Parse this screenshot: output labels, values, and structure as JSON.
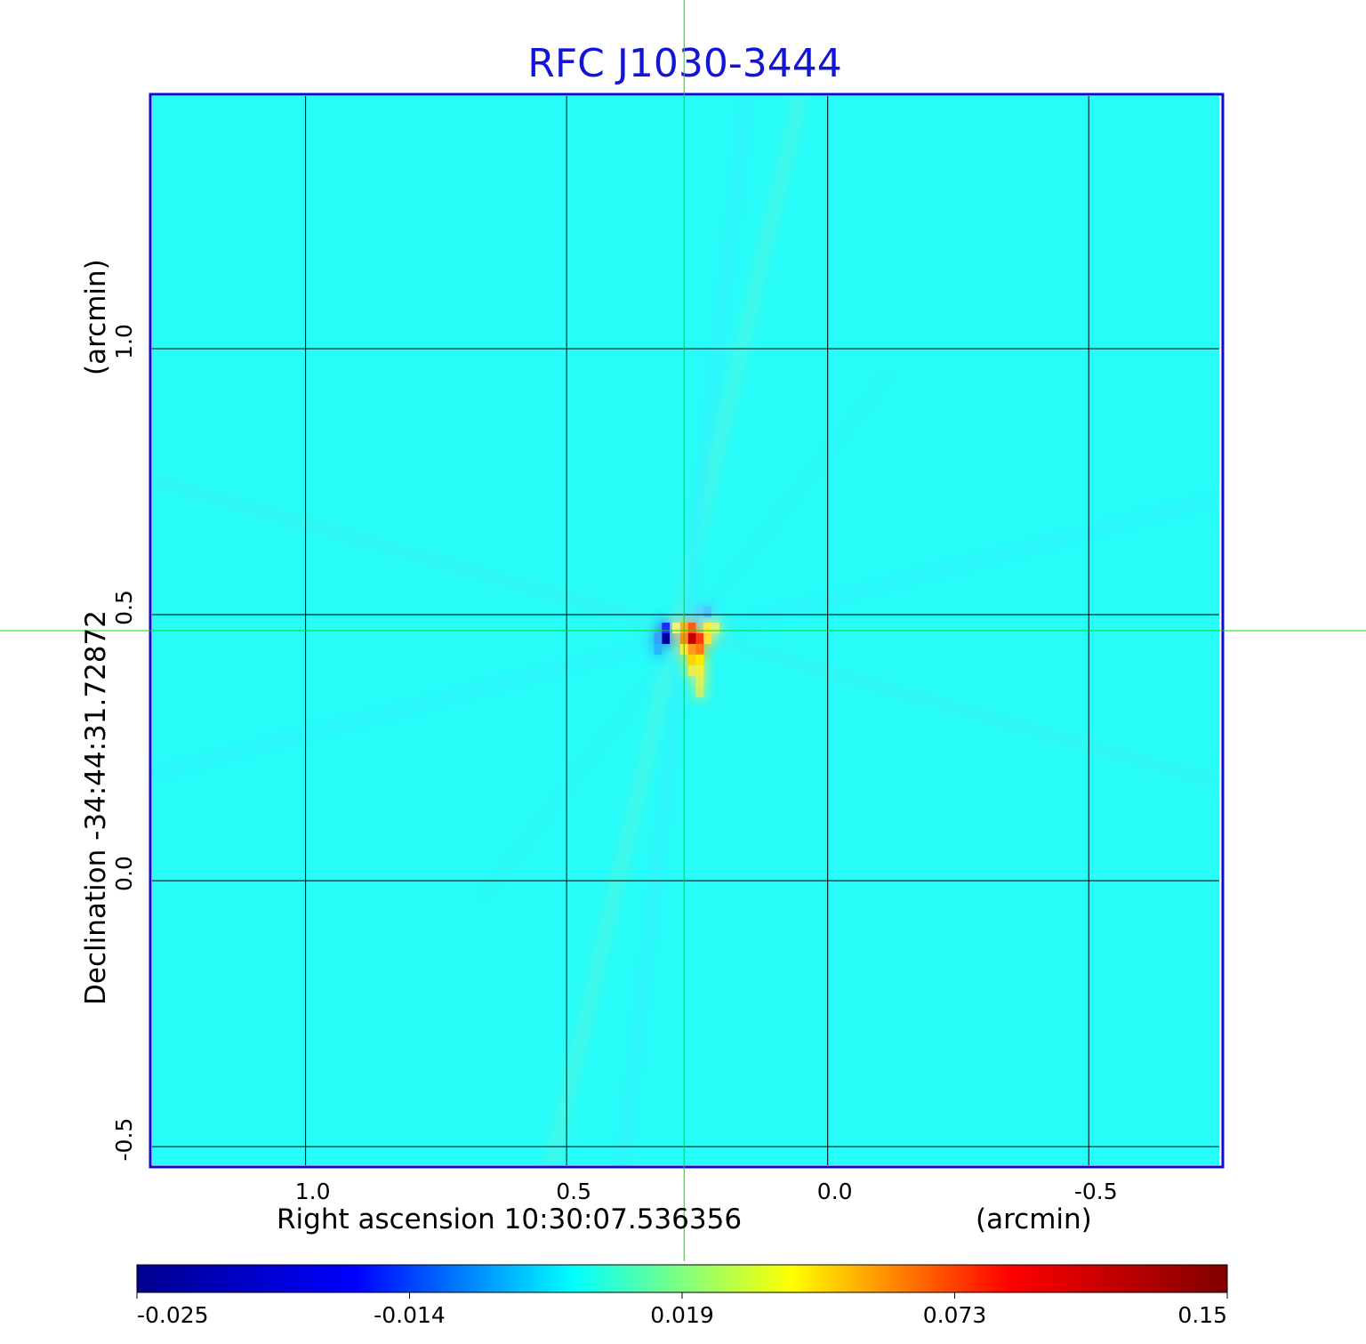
{
  "chart_data": {
    "type": "heatmap",
    "title": "RFC J1030-3444",
    "colors": {
      "title": "#1414d6",
      "frame": "#0a0ad2",
      "grid": "#000000",
      "crosshair": "#00e000",
      "background_map": "#27fcf8"
    },
    "x_axis": {
      "label": "Right ascension  10:30:07.536356",
      "unit": "(arcmin)",
      "ticks": [
        {
          "value": 1.0,
          "label": "1.0"
        },
        {
          "value": 0.5,
          "label": "0.5"
        },
        {
          "value": 0.0,
          "label": "0.0"
        },
        {
          "value": -0.5,
          "label": "-0.5"
        }
      ],
      "range": [
        1.294,
        -0.75
      ],
      "direction": "reversed"
    },
    "y_axis": {
      "label": "Declination  -34:44:31.72872",
      "unit": "(arcmin)",
      "ticks": [
        {
          "value": 1.0,
          "label": "1.0"
        },
        {
          "value": 0.5,
          "label": "0.5"
        },
        {
          "value": 0.0,
          "label": "0.0"
        },
        {
          "value": -0.5,
          "label": "-0.5"
        }
      ],
      "range": [
        -0.535,
        1.475
      ]
    },
    "grid": true,
    "crosshair": {
      "x": 0.275,
      "y": 0.47
    },
    "colorbar": {
      "position": "bottom",
      "ticks": [
        "-0.025",
        "-0.014",
        "0.019",
        "0.073",
        "0.15"
      ],
      "stops": [
        "#00008f",
        "#0000ff",
        "#00ffff",
        "#ffff00",
        "#ff0000",
        "#800000"
      ]
    },
    "source_pixels": [
      {
        "x": 0.31,
        "y": 0.475,
        "color": "#1a2cff"
      },
      {
        "x": 0.31,
        "y": 0.455,
        "color": "#00009c"
      },
      {
        "x": 0.325,
        "y": 0.455,
        "color": "#3aa0ff"
      },
      {
        "x": 0.325,
        "y": 0.435,
        "color": "#28b8ff"
      },
      {
        "x": 0.26,
        "y": 0.475,
        "color": "#ff5a1a"
      },
      {
        "x": 0.26,
        "y": 0.455,
        "color": "#c40000"
      },
      {
        "x": 0.245,
        "y": 0.455,
        "color": "#ff3a10"
      },
      {
        "x": 0.245,
        "y": 0.435,
        "color": "#ff7a10"
      },
      {
        "x": 0.26,
        "y": 0.435,
        "color": "#ff9a18"
      },
      {
        "x": 0.275,
        "y": 0.455,
        "color": "#ff8c1a"
      },
      {
        "x": 0.275,
        "y": 0.475,
        "color": "#ffb020"
      },
      {
        "x": 0.26,
        "y": 0.415,
        "color": "#ffd400"
      },
      {
        "x": 0.245,
        "y": 0.415,
        "color": "#ffe800"
      },
      {
        "x": 0.23,
        "y": 0.455,
        "color": "#ffe030"
      },
      {
        "x": 0.23,
        "y": 0.475,
        "color": "#ffee40"
      },
      {
        "x": 0.275,
        "y": 0.435,
        "color": "#ffe838"
      },
      {
        "x": 0.245,
        "y": 0.505,
        "color": "#58d4ff"
      },
      {
        "x": 0.23,
        "y": 0.505,
        "color": "#48c8ff"
      },
      {
        "x": 0.245,
        "y": 0.395,
        "color": "#f0f040"
      },
      {
        "x": 0.245,
        "y": 0.375,
        "color": "#d8f060"
      },
      {
        "x": 0.245,
        "y": 0.355,
        "color": "#c8f070"
      },
      {
        "x": 0.26,
        "y": 0.395,
        "color": "#e8f050"
      },
      {
        "x": 0.29,
        "y": 0.475,
        "color": "#f4f080"
      },
      {
        "x": 0.215,
        "y": 0.475,
        "color": "#dcf478"
      }
    ]
  }
}
